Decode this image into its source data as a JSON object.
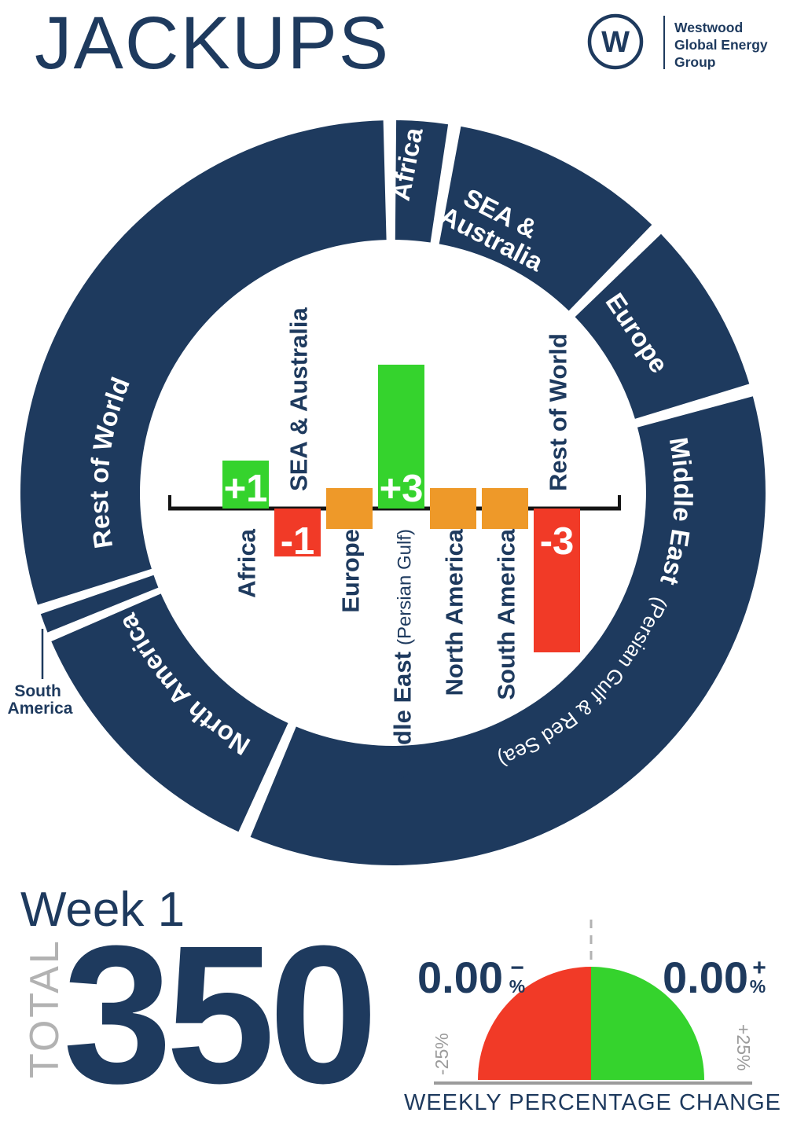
{
  "header": {
    "title": "JACKUPS",
    "logo": {
      "mark": "W",
      "company_lines": [
        "Westwood",
        "Global Energy",
        "Group"
      ]
    }
  },
  "colors": {
    "navy": "#1e3a5e",
    "green": "#35d32d",
    "orange": "#ee9929",
    "red": "#f13a27",
    "gray_light": "#b2b2b2",
    "gray_mid": "#9b9b9b",
    "axis_black": "#141414",
    "white": "#ffffff"
  },
  "chart_data": [
    {
      "type": "donut",
      "description_visible_text_only": "navy ring of regional segments, sized by share, clockwise from top",
      "ring_color": "#1e3a5e",
      "gap_color": "#ffffff",
      "segments": [
        {
          "label": "Africa",
          "start_deg": 0.5,
          "end_deg": 8.5
        },
        {
          "label": "SEA & Australia",
          "label_lines": [
            "SEA &",
            "Australia"
          ],
          "start_deg": 10.5,
          "end_deg": 44
        },
        {
          "label": "Europe",
          "start_deg": 46,
          "end_deg": 73
        },
        {
          "label": "Middle East (Persian Gulf & Red Sea)",
          "label_main": "Middle East",
          "label_detail": "(Persian Gulf & Red Sea)",
          "start_deg": 75,
          "end_deg": 202.5
        },
        {
          "label": "North America",
          "start_deg": 204.5,
          "end_deg": 246.5
        },
        {
          "label": "South America",
          "start_deg": 248,
          "end_deg": 251
        },
        {
          "label": "Rest of World",
          "start_deg": 252.5,
          "end_deg": 358.5
        }
      ],
      "callout": {
        "label_lines": [
          "South",
          "America"
        ]
      }
    },
    {
      "type": "bar",
      "categories": [
        "Africa",
        "SEA & Australia",
        "Europe",
        "Middle East",
        "North America",
        "South America",
        "Rest of World"
      ],
      "category_details": [
        "",
        "",
        "",
        "(Persian Gulf)",
        "",
        "",
        ""
      ],
      "values": [
        1,
        -1,
        0,
        3,
        0,
        0,
        -3
      ],
      "value_labels": [
        "+1",
        "-1",
        "",
        "+3",
        "",
        "",
        "-3"
      ],
      "bar_colors": [
        "#35d32d",
        "#f13a27",
        "#ee9929",
        "#35d32d",
        "#ee9929",
        "#ee9929",
        "#f13a27"
      ],
      "ylabel": "",
      "xlabel": ""
    },
    {
      "type": "gauge",
      "shape": "semicircle",
      "value": 0,
      "range": [
        -25,
        25
      ],
      "min_label": "-25%",
      "max_label": "+25%",
      "left_value": "0.00",
      "left_sign": "−",
      "right_value": "0.00",
      "right_sign": "+",
      "percent_symbol": "%",
      "axis_label": "WEEKLY PERCENTAGE CHANGE",
      "left_color": "#f13a27",
      "right_color": "#35d32d"
    }
  ],
  "footer": {
    "week": "Week 1",
    "total_label": "TOTAL",
    "total_value": "350"
  }
}
